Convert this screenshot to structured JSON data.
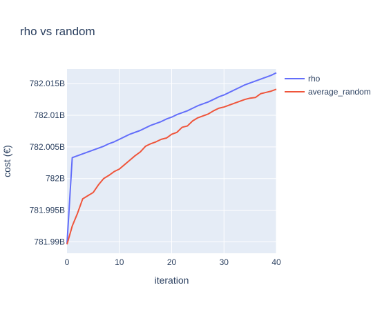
{
  "chart_data": {
    "type": "line",
    "title": "rho vs random",
    "xlabel": "iteration",
    "ylabel": "cost (€)",
    "xlim": [
      0,
      40
    ],
    "ylim": [
      781.9882,
      782.0173
    ],
    "x_ticks": [
      0,
      10,
      20,
      30,
      40
    ],
    "x_tick_labels": [
      "0",
      "10",
      "20",
      "30",
      "40"
    ],
    "y_ticks": [
      781.99,
      781.995,
      782.0,
      782.005,
      782.01,
      782.015
    ],
    "y_tick_labels": [
      "781.99B",
      "781.995B",
      "782B",
      "782.005B",
      "782.01B",
      "782.015B"
    ],
    "grid": true,
    "legend_position": "top-right",
    "series": [
      {
        "name": "rho",
        "color": "#636efa",
        "x": [
          0,
          1,
          2,
          3,
          4,
          5,
          6,
          7,
          8,
          9,
          10,
          11,
          12,
          13,
          14,
          15,
          16,
          17,
          18,
          19,
          20,
          21,
          22,
          23,
          24,
          25,
          26,
          27,
          28,
          29,
          30,
          31,
          32,
          33,
          34,
          35,
          36,
          37,
          38,
          39,
          40
        ],
        "values": [
          781.9897,
          782.0033,
          782.0036,
          782.0039,
          782.0042,
          782.0045,
          782.0048,
          782.0051,
          782.0055,
          782.0058,
          782.0062,
          782.0066,
          782.007,
          782.0073,
          782.0076,
          782.008,
          782.0084,
          782.0087,
          782.009,
          782.0094,
          782.0097,
          782.0101,
          782.0104,
          782.0107,
          782.0111,
          782.0115,
          782.0118,
          782.0121,
          782.0125,
          782.0129,
          782.0132,
          782.0136,
          782.014,
          782.0144,
          782.0148,
          782.0151,
          782.0154,
          782.0157,
          782.016,
          782.0163,
          782.0167
        ]
      },
      {
        "name": "average_random",
        "color": "#ef553b",
        "x": [
          0,
          1,
          2,
          3,
          4,
          5,
          6,
          7,
          8,
          9,
          10,
          11,
          12,
          13,
          14,
          15,
          16,
          17,
          18,
          19,
          20,
          21,
          22,
          23,
          24,
          25,
          26,
          27,
          28,
          29,
          30,
          31,
          32,
          33,
          34,
          35,
          36,
          37,
          38,
          39,
          40
        ],
        "values": [
          781.9896,
          781.9925,
          781.9945,
          781.9968,
          781.9973,
          781.9978,
          781.999,
          782.0,
          782.0005,
          782.0011,
          782.0015,
          782.0022,
          782.0029,
          782.0036,
          782.0042,
          782.0051,
          782.0055,
          782.0058,
          782.0062,
          782.0064,
          782.007,
          782.0073,
          782.0081,
          782.0083,
          782.0091,
          782.0096,
          782.0099,
          782.0102,
          782.0107,
          782.0111,
          782.0113,
          782.0116,
          782.0119,
          782.0122,
          782.0125,
          782.0127,
          782.0128,
          782.0134,
          782.0136,
          782.0138,
          782.0141
        ]
      }
    ]
  }
}
